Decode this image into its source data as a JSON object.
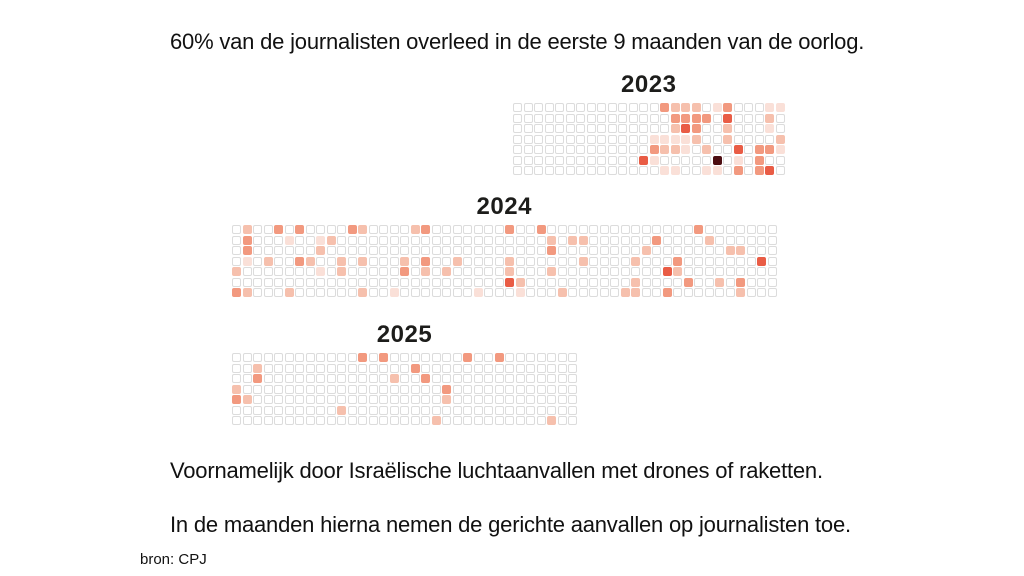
{
  "title": "60% van de journalisten overleed in de eerste 9 maanden van de oorlog.",
  "subtitle_1": "Voornamelijk door Israëlische luchtaanvallen met drones of raketten.",
  "subtitle_2": "In de maanden hierna nemen de gerichte aanvallen op journalisten toe.",
  "source": "bron: CPJ",
  "colors": {
    "empty_cell": "#ffffff",
    "cell_border": "#dcdcdc",
    "text": "#111111",
    "levels": [
      "#ffffff",
      "#fae0d8",
      "#f6c0ad",
      "#f2997f",
      "#e95c45",
      "#4d0e12"
    ]
  },
  "chart_data": {
    "type": "heatmap",
    "title": "Journalisten overleden per dag (kalender-heatmap)",
    "legend_position": "none",
    "grid": true,
    "cell_encoding": "cells are [column, row, intensity]; intensity 1 (licht) t/m 5 (donker) = aantal overleden journalisten per dag",
    "years": [
      {
        "label": "2023",
        "columns": 26,
        "rows": 7,
        "cells": [
          [
            14,
            0,
            3
          ],
          [
            15,
            0,
            2
          ],
          [
            16,
            0,
            2
          ],
          [
            17,
            0,
            2
          ],
          [
            19,
            0,
            1
          ],
          [
            20,
            0,
            3
          ],
          [
            24,
            0,
            1
          ],
          [
            25,
            0,
            1
          ],
          [
            15,
            1,
            3
          ],
          [
            16,
            1,
            3
          ],
          [
            17,
            1,
            3
          ],
          [
            18,
            1,
            3
          ],
          [
            20,
            1,
            4
          ],
          [
            24,
            1,
            2
          ],
          [
            15,
            2,
            2
          ],
          [
            16,
            2,
            4
          ],
          [
            17,
            2,
            3
          ],
          [
            20,
            2,
            2
          ],
          [
            24,
            2,
            1
          ],
          [
            13,
            3,
            1
          ],
          [
            14,
            3,
            1
          ],
          [
            15,
            3,
            1
          ],
          [
            16,
            3,
            1
          ],
          [
            17,
            3,
            2
          ],
          [
            20,
            3,
            2
          ],
          [
            25,
            3,
            2
          ],
          [
            13,
            4,
            3
          ],
          [
            14,
            4,
            2
          ],
          [
            15,
            4,
            2
          ],
          [
            16,
            4,
            1
          ],
          [
            18,
            4,
            2
          ],
          [
            21,
            4,
            4
          ],
          [
            23,
            4,
            3
          ],
          [
            24,
            4,
            3
          ],
          [
            25,
            4,
            1
          ],
          [
            12,
            5,
            4
          ],
          [
            13,
            5,
            1
          ],
          [
            19,
            5,
            5
          ],
          [
            21,
            5,
            1
          ],
          [
            23,
            5,
            3
          ],
          [
            14,
            6,
            1
          ],
          [
            15,
            6,
            1
          ],
          [
            18,
            6,
            1
          ],
          [
            19,
            6,
            1
          ],
          [
            21,
            6,
            3
          ],
          [
            23,
            6,
            3
          ],
          [
            24,
            6,
            4
          ]
        ]
      },
      {
        "label": "2024",
        "columns": 52,
        "rows": 7,
        "cells": [
          [
            1,
            0,
            2
          ],
          [
            4,
            0,
            3
          ],
          [
            6,
            0,
            3
          ],
          [
            11,
            0,
            3
          ],
          [
            12,
            0,
            2
          ],
          [
            17,
            0,
            2
          ],
          [
            18,
            0,
            3
          ],
          [
            26,
            0,
            3
          ],
          [
            29,
            0,
            3
          ],
          [
            44,
            0,
            3
          ],
          [
            1,
            1,
            3
          ],
          [
            5,
            1,
            1
          ],
          [
            8,
            1,
            1
          ],
          [
            9,
            1,
            2
          ],
          [
            30,
            1,
            2
          ],
          [
            32,
            1,
            2
          ],
          [
            33,
            1,
            2
          ],
          [
            40,
            1,
            3
          ],
          [
            45,
            1,
            2
          ],
          [
            1,
            2,
            3
          ],
          [
            8,
            2,
            2
          ],
          [
            30,
            2,
            3
          ],
          [
            39,
            2,
            2
          ],
          [
            47,
            2,
            2
          ],
          [
            48,
            2,
            2
          ],
          [
            1,
            3,
            1
          ],
          [
            3,
            3,
            2
          ],
          [
            6,
            3,
            3
          ],
          [
            7,
            3,
            2
          ],
          [
            10,
            3,
            2
          ],
          [
            12,
            3,
            2
          ],
          [
            16,
            3,
            2
          ],
          [
            18,
            3,
            3
          ],
          [
            21,
            3,
            2
          ],
          [
            26,
            3,
            2
          ],
          [
            33,
            3,
            2
          ],
          [
            38,
            3,
            2
          ],
          [
            42,
            3,
            3
          ],
          [
            50,
            3,
            4
          ],
          [
            0,
            4,
            2
          ],
          [
            8,
            4,
            1
          ],
          [
            10,
            4,
            2
          ],
          [
            16,
            4,
            3
          ],
          [
            18,
            4,
            2
          ],
          [
            20,
            4,
            2
          ],
          [
            26,
            4,
            2
          ],
          [
            30,
            4,
            2
          ],
          [
            41,
            4,
            4
          ],
          [
            42,
            4,
            2
          ],
          [
            26,
            5,
            4
          ],
          [
            27,
            5,
            2
          ],
          [
            38,
            5,
            2
          ],
          [
            43,
            5,
            3
          ],
          [
            46,
            5,
            2
          ],
          [
            48,
            5,
            3
          ],
          [
            0,
            6,
            3
          ],
          [
            1,
            6,
            2
          ],
          [
            5,
            6,
            2
          ],
          [
            12,
            6,
            2
          ],
          [
            15,
            6,
            1
          ],
          [
            23,
            6,
            1
          ],
          [
            27,
            6,
            1
          ],
          [
            31,
            6,
            2
          ],
          [
            37,
            6,
            2
          ],
          [
            38,
            6,
            2
          ],
          [
            41,
            6,
            3
          ],
          [
            48,
            6,
            2
          ]
        ]
      },
      {
        "label": "2025",
        "columns": 33,
        "rows": 7,
        "cells": [
          [
            12,
            0,
            3
          ],
          [
            14,
            0,
            3
          ],
          [
            22,
            0,
            3
          ],
          [
            25,
            0,
            3
          ],
          [
            2,
            1,
            2
          ],
          [
            17,
            1,
            3
          ],
          [
            2,
            2,
            3
          ],
          [
            15,
            2,
            2
          ],
          [
            18,
            2,
            3
          ],
          [
            0,
            3,
            2
          ],
          [
            20,
            3,
            3
          ],
          [
            0,
            4,
            3
          ],
          [
            1,
            4,
            2
          ],
          [
            20,
            4,
            2
          ],
          [
            10,
            5,
            2
          ],
          [
            19,
            6,
            2
          ],
          [
            30,
            6,
            2
          ]
        ]
      }
    ]
  }
}
